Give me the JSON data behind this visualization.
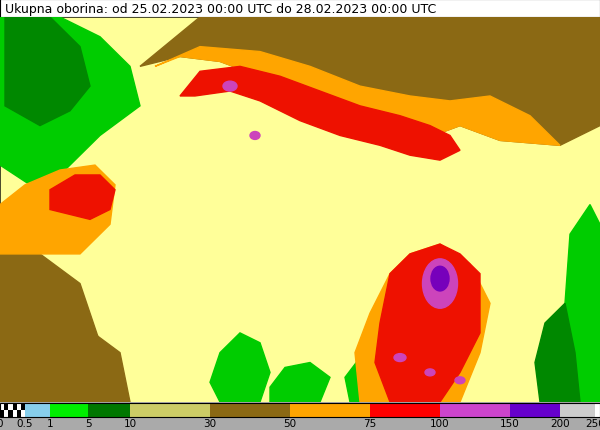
{
  "title": "Ukupna oborina: od 25.02.2023 00:00 UTC do 28.02.2023 00:00 UTC",
  "title_fontsize": 9,
  "figure_width": 6.0,
  "figure_height": 4.31,
  "dpi": 100,
  "colorbar_labels": [
    "0",
    "0.5",
    "1",
    "5",
    "10",
    "30",
    "50",
    "75",
    "100",
    "150",
    "200",
    "250"
  ],
  "colorbar_colors": [
    "checkered",
    "#87CEEB",
    "#00EE00",
    "#007700",
    "#CCCC66",
    "#8B6914",
    "#FFA500",
    "#FF0000",
    "#CC44CC",
    "#6600CC",
    "#CCCCCC",
    "#FFFFFF"
  ],
  "seg_positions": [
    0,
    25,
    50,
    88,
    130,
    210,
    290,
    370,
    440,
    510,
    560,
    595,
    600
  ],
  "map_colors": {
    "background_yellow": "#EEEE88",
    "light_yellow": "#FFFF99",
    "bright_green": "#00CC00",
    "dark_green": "#008800",
    "brown": "#8B6914",
    "orange": "#FFA500",
    "red": "#EE1100",
    "purple": "#CC44CC",
    "dark_purple": "#7700BB",
    "light_green": "#44CC44"
  }
}
